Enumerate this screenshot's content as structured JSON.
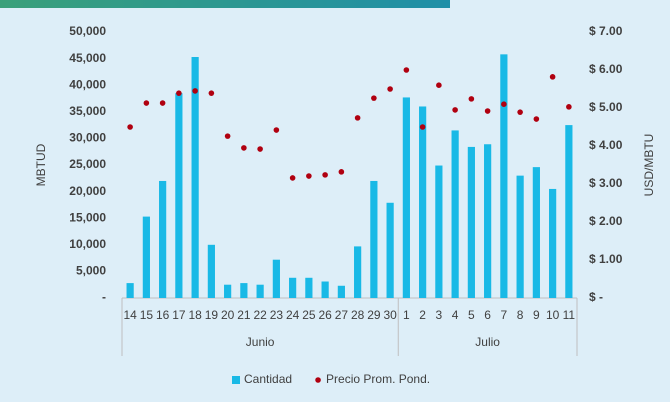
{
  "chart_data": {
    "type": "bar-dot",
    "groups": [
      {
        "label": "Junio",
        "categories": [
          "14",
          "15",
          "16",
          "17",
          "18",
          "19",
          "20",
          "21",
          "22",
          "23",
          "24",
          "25",
          "26",
          "27",
          "28",
          "29",
          "30"
        ]
      },
      {
        "label": "Julio",
        "categories": [
          "1",
          "2",
          "3",
          "4",
          "5",
          "6",
          "7",
          "8",
          "9",
          "10",
          "11"
        ]
      }
    ],
    "series": [
      {
        "name": "Cantidad",
        "color": "#19b9e6",
        "values": [
          2800,
          15300,
          22000,
          38500,
          45300,
          10000,
          2500,
          2800,
          2500,
          7200,
          3800,
          3800,
          3100,
          2300,
          9700,
          22000,
          17900,
          37700,
          36000,
          24900,
          31500,
          28400,
          28900,
          45800,
          23000,
          24600,
          20500,
          32500
        ]
      },
      {
        "name": "Precio Prom. Pond.",
        "color": "#b00010",
        "axis": "y2",
        "values": [
          4.5,
          5.13,
          5.13,
          5.39,
          5.45,
          5.39,
          4.26,
          3.95,
          3.92,
          4.42,
          3.16,
          3.21,
          3.24,
          3.32,
          4.74,
          5.26,
          5.5,
          6.0,
          4.5,
          5.6,
          4.95,
          5.24,
          4.92,
          5.1,
          4.89,
          4.71,
          5.82,
          5.03
        ]
      }
    ],
    "ylabel": "MBTUD",
    "y2label": "USD/MBTU",
    "ylim": [
      0,
      50000
    ],
    "yticks": [
      {
        "value": 0,
        "label": "-"
      },
      {
        "value": 5000,
        "label": "5,000"
      },
      {
        "value": 10000,
        "label": "10,000"
      },
      {
        "value": 15000,
        "label": "15,000"
      },
      {
        "value": 20000,
        "label": "20,000"
      },
      {
        "value": 25000,
        "label": "25,000"
      },
      {
        "value": 30000,
        "label": "30,000"
      },
      {
        "value": 35000,
        "label": "35,000"
      },
      {
        "value": 40000,
        "label": "40,000"
      },
      {
        "value": 45000,
        "label": "45,000"
      },
      {
        "value": 50000,
        "label": "50,000"
      }
    ],
    "y2lim": [
      0,
      7
    ],
    "y2ticks": [
      {
        "value": 0,
        "label": "$ -"
      },
      {
        "value": 1,
        "label": "$ 1.00"
      },
      {
        "value": 2,
        "label": "$ 2.00"
      },
      {
        "value": 3,
        "label": "$ 3.00"
      },
      {
        "value": 4,
        "label": "$ 4.00"
      },
      {
        "value": 5,
        "label": "$ 5.00"
      },
      {
        "value": 6,
        "label": "$ 6.00"
      },
      {
        "value": 7,
        "label": "$ 7.00"
      }
    ],
    "legend": "bottom"
  }
}
